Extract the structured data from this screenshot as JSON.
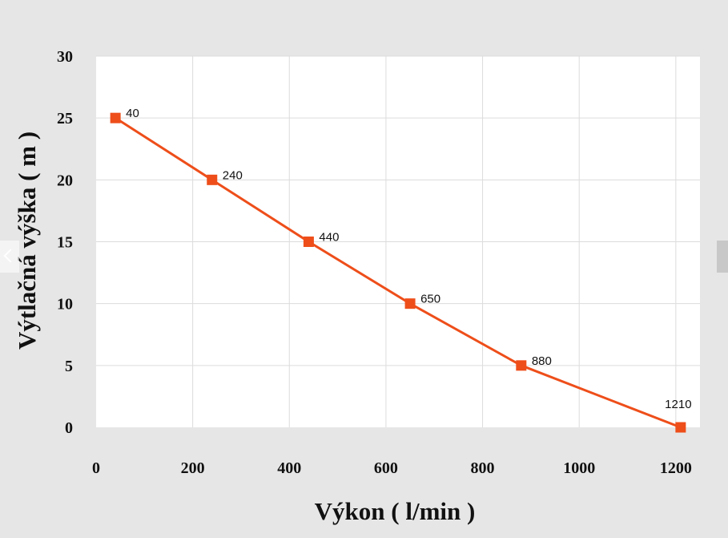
{
  "chart_data": {
    "type": "line",
    "xlabel": "Výkon ( l/min )",
    "ylabel": "Výtlačná výška ( m )",
    "xlim": [
      0,
      1250
    ],
    "ylim": [
      0,
      30
    ],
    "x_ticks": [
      "0",
      "200",
      "400",
      "600",
      "800",
      "1000",
      "1200"
    ],
    "x_tick_values": [
      0,
      200,
      400,
      600,
      800,
      1000,
      1200
    ],
    "y_ticks": [
      "0",
      "5",
      "10",
      "15",
      "20",
      "25",
      "30"
    ],
    "y_tick_values": [
      0,
      5,
      10,
      15,
      20,
      25,
      30
    ],
    "grid": true,
    "series": [
      {
        "color": "#ee4e1a",
        "points": [
          {
            "x": 40,
            "y": 25,
            "label": "40"
          },
          {
            "x": 240,
            "y": 20,
            "label": "240"
          },
          {
            "x": 440,
            "y": 15,
            "label": "440"
          },
          {
            "x": 650,
            "y": 10,
            "label": "650"
          },
          {
            "x": 880,
            "y": 5,
            "label": "880"
          },
          {
            "x": 1210,
            "y": 0,
            "label": "1210"
          }
        ]
      }
    ]
  },
  "viewer": {
    "prev_icon": "chevron-left-icon",
    "next_icon": "chevron-right-icon"
  }
}
